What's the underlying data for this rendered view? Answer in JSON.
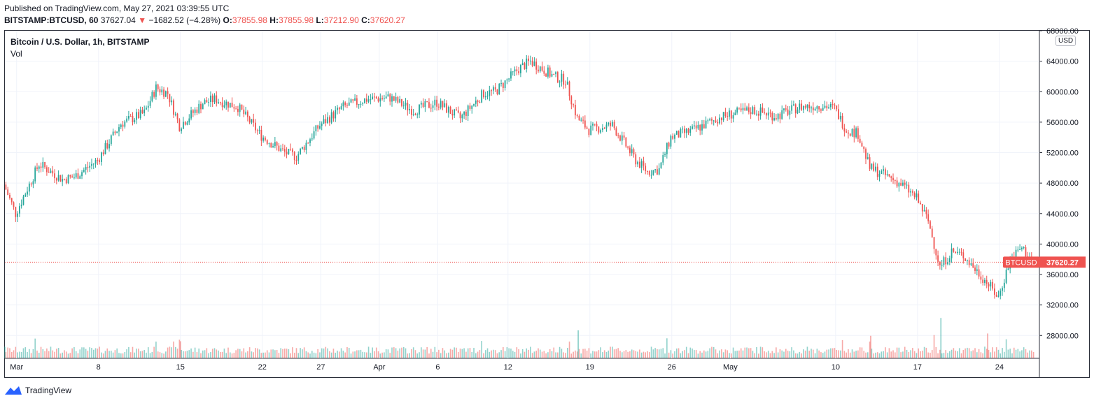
{
  "header": {
    "published": "Published on TradingView.com, May 27, 2021 03:39:55 UTC",
    "symbol": "BITSTAMP:BTCUSD, 60",
    "last": "37627.04",
    "change": "−1682.52 (−4.28%)",
    "open_label": "O:",
    "open": "37855.98",
    "high_label": "H:",
    "high": "37855.98",
    "low_label": "L:",
    "low": "37212.90",
    "close_label": "C:",
    "close": "37620.27"
  },
  "legend": {
    "title": "Bitcoin / U.S. Dollar, 1h, BITSTAMP",
    "volume": "Vol"
  },
  "price_axis": {
    "currency": "USD",
    "last_price_label": "37620.27",
    "symbol_tag": "BTCUSD",
    "ticks": [
      "68000.00",
      "64000.00",
      "60000.00",
      "56000.00",
      "52000.00",
      "48000.00",
      "44000.00",
      "40000.00",
      "36000.00",
      "32000.00",
      "28000.00"
    ]
  },
  "time_axis": {
    "ticks": [
      "Mar",
      "8",
      "15",
      "22",
      "27",
      "Apr",
      "6",
      "12",
      "19",
      "26",
      "May",
      "10",
      "17",
      "24"
    ]
  },
  "colors": {
    "up": "#26a69a",
    "down": "#ef5350",
    "grid": "#f0f3fa",
    "axis_text": "#131722"
  },
  "footer": {
    "brand": "TradingView"
  },
  "chart_data": {
    "type": "candlestick",
    "interval": "1h",
    "x_start": "2021-02-28",
    "x_end": "2021-05-27",
    "y_range": [
      25000,
      68000
    ],
    "grid": true,
    "series": [
      {
        "name": "BTCUSD",
        "x": [
          "2021-02-28",
          "2021-03-01",
          "2021-03-03",
          "2021-03-05",
          "2021-03-06",
          "2021-03-08",
          "2021-03-10",
          "2021-03-12",
          "2021-03-13",
          "2021-03-14",
          "2021-03-15",
          "2021-03-17",
          "2021-03-18",
          "2021-03-20",
          "2021-03-22",
          "2021-03-24",
          "2021-03-25",
          "2021-03-27",
          "2021-03-29",
          "2021-03-31",
          "2021-04-02",
          "2021-04-04",
          "2021-04-06",
          "2021-04-08",
          "2021-04-10",
          "2021-04-11",
          "2021-04-13",
          "2021-04-14",
          "2021-04-16",
          "2021-04-17",
          "2021-04-18",
          "2021-04-19",
          "2021-04-21",
          "2021-04-23",
          "2021-04-24",
          "2021-04-25",
          "2021-04-26",
          "2021-04-28",
          "2021-04-30",
          "2021-05-01",
          "2021-05-03",
          "2021-05-05",
          "2021-05-07",
          "2021-05-09",
          "2021-05-10",
          "2021-05-11",
          "2021-05-12",
          "2021-05-13",
          "2021-05-15",
          "2021-05-16",
          "2021-05-17",
          "2021-05-18",
          "2021-05-19",
          "2021-05-20",
          "2021-05-21",
          "2021-05-23",
          "2021-05-24",
          "2021-05-25",
          "2021-05-26",
          "2021-05-27"
        ],
        "y": [
          47800,
          44000,
          50500,
          48500,
          48800,
          51000,
          55800,
          57200,
          60500,
          59800,
          55500,
          58500,
          59000,
          58000,
          54200,
          52000,
          51500,
          55600,
          58000,
          59000,
          59200,
          57500,
          58600,
          56500,
          59800,
          60000,
          63000,
          64000,
          62000,
          61500,
          56500,
          55000,
          55600,
          51000,
          49500,
          49800,
          54000,
          55000,
          56500,
          57000,
          57600,
          56800,
          58000,
          58200,
          57800,
          55000,
          54500,
          50000,
          48500,
          47500,
          46000,
          43000,
          37000,
          39000,
          38500,
          35000,
          33000,
          38000,
          39500,
          37620
        ]
      },
      {
        "name": "Vol",
        "x": [
          "2021-02-28",
          "2021-03-15",
          "2021-04-18",
          "2021-05-13",
          "2021-05-19",
          "2021-05-23"
        ],
        "y": [
          1500,
          2200,
          3600,
          2900,
          5200,
          3200
        ]
      }
    ]
  }
}
